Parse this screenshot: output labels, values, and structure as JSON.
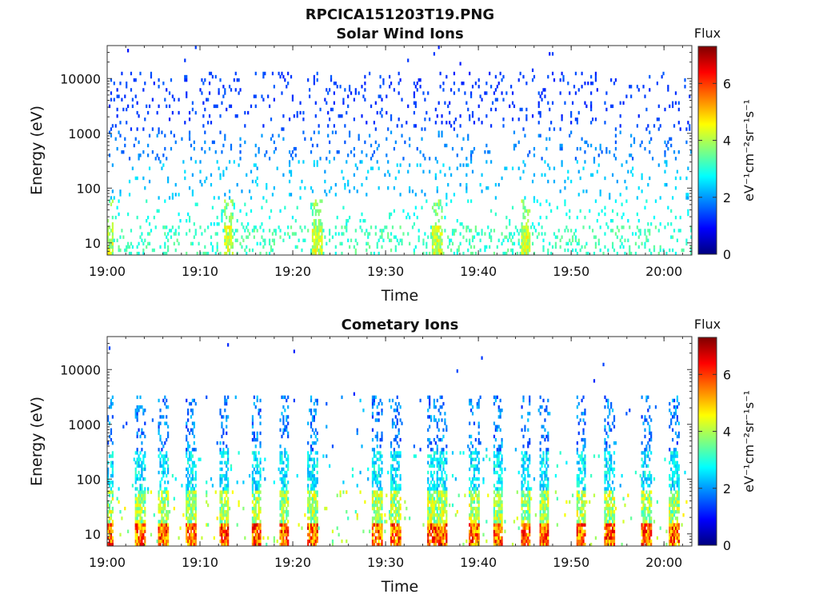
{
  "figure_title": "RPCICA151203T19.PNG",
  "colorbar_scale": [
    "#00007f",
    "#0000ff",
    "#007fff",
    "#00ffff",
    "#7fff7f",
    "#ffff00",
    "#ff7f00",
    "#ff0000",
    "#7f0000"
  ],
  "chart_data": [
    {
      "type": "heatmap",
      "title": "Solar Wind Ions",
      "xlabel": "Time",
      "ylabel": "Energy (eV)",
      "y_scale": "log",
      "xlim": [
        "19:00",
        "20:03"
      ],
      "ylim": [
        6,
        40000
      ],
      "x_ticks": [
        "19:00",
        "19:10",
        "19:20",
        "19:30",
        "19:40",
        "19:50",
        "20:00"
      ],
      "y_ticks": [
        "10",
        "100",
        "1000",
        "10000"
      ],
      "colorbar": {
        "label": "Flux",
        "units": "eV⁻¹cm⁻²sr⁻¹s⁻¹",
        "range": [
          0,
          7.3
        ],
        "ticks": [
          "0",
          "2",
          "4",
          "6"
        ]
      },
      "grid": false,
      "bursts_minutes": [
        0,
        13,
        22.5,
        35.5,
        45
      ],
      "distribution": {
        "sparse_high_energy_flux": [
          1.0,
          1.6
        ],
        "mid_energy_flux": [
          1.8,
          2.6
        ],
        "low_energy_flux": [
          2.6,
          3.6
        ],
        "burst_low_energy_flux": [
          3.6,
          4.8
        ]
      }
    },
    {
      "type": "heatmap",
      "title": "Cometary Ions",
      "xlabel": "Time",
      "ylabel": "Energy (eV)",
      "y_scale": "log",
      "xlim": [
        "19:00",
        "20:03"
      ],
      "ylim": [
        6,
        40000
      ],
      "x_ticks": [
        "19:00",
        "19:10",
        "19:20",
        "19:30",
        "19:40",
        "19:50",
        "20:00"
      ],
      "y_ticks": [
        "10",
        "100",
        "1000",
        "10000"
      ],
      "colorbar": {
        "label": "Flux",
        "units": "eV⁻¹cm⁻²sr⁻¹s⁻¹",
        "range": [
          0,
          7.3
        ],
        "ticks": [
          "0",
          "2",
          "4",
          "6"
        ]
      },
      "grid": false,
      "bursts_minutes": [
        0,
        3.5,
        6,
        9,
        12.5,
        16,
        19,
        22,
        29,
        31,
        35,
        36,
        39.5,
        42,
        45,
        47,
        51,
        54,
        58,
        61
      ],
      "distribution": {
        "sparse_high_energy_flux": [
          1.0,
          1.6
        ],
        "mid_energy_flux": [
          2.0,
          3.2
        ],
        "low_energy_flux": [
          3.5,
          5.5
        ],
        "burst_peak_flux": [
          5.5,
          6.8
        ]
      }
    }
  ]
}
